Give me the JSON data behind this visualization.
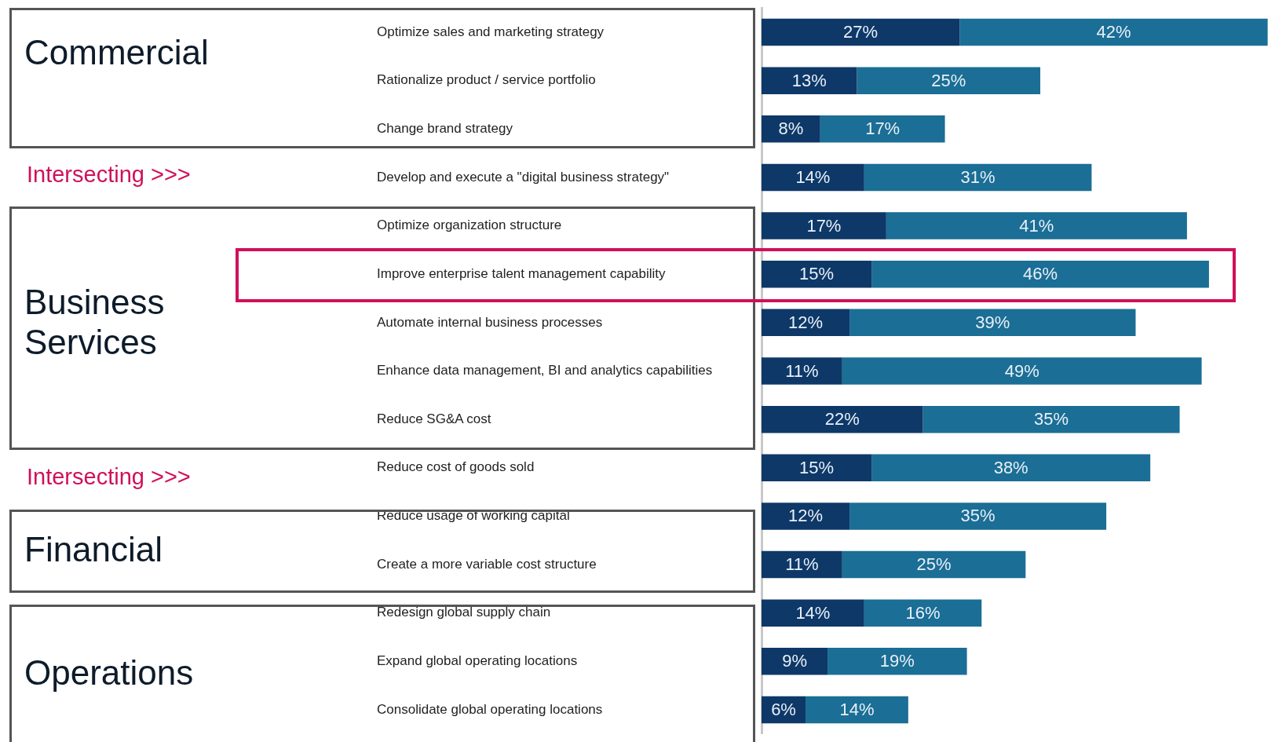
{
  "chart_data": {
    "type": "bar",
    "orientation": "horizontal",
    "stacked": true,
    "categories": [
      "Optimize sales and marketing strategy",
      "Rationalize product / service portfolio",
      "Change brand strategy",
      "Develop and execute a \"digital business strategy\"",
      "Optimize organization structure",
      "Improve enterprise talent management capability",
      "Automate internal business processes",
      "Enhance data management, BI and analytics capabilities",
      "Reduce SG&A cost",
      "Reduce cost of goods sold",
      "Reduce usage of working capital",
      "Create a more variable cost structure",
      "Redesign global supply chain",
      "Expand global operating locations",
      "Consolidate global operating locations"
    ],
    "series": [
      {
        "color": "#0e3868",
        "values": [
          27,
          13,
          8,
          14,
          17,
          15,
          12,
          11,
          22,
          15,
          12,
          11,
          14,
          9,
          6
        ],
        "value_labels": [
          "27%",
          "13%",
          "8%",
          "14%",
          "17%",
          "15%",
          "12%",
          "11%",
          "22%",
          "15%",
          "12%",
          "11%",
          "14%",
          "9%",
          "6%"
        ]
      },
      {
        "color": "#1b6e95",
        "values": [
          42,
          25,
          17,
          31,
          41,
          46,
          39,
          49,
          35,
          38,
          35,
          25,
          16,
          19,
          14
        ],
        "value_labels": [
          "42%",
          "25%",
          "17%",
          "31%",
          "41%",
          "46%",
          "39%",
          "49%",
          "35%",
          "38%",
          "35%",
          "25%",
          "16%",
          "19%",
          "14%"
        ]
      }
    ],
    "tick_labels": "y",
    "annotations": [
      "Commercial",
      "Intersecting >>>",
      "Business Services",
      "Intersecting >>>",
      "Financial",
      "Operations"
    ]
  }
}
